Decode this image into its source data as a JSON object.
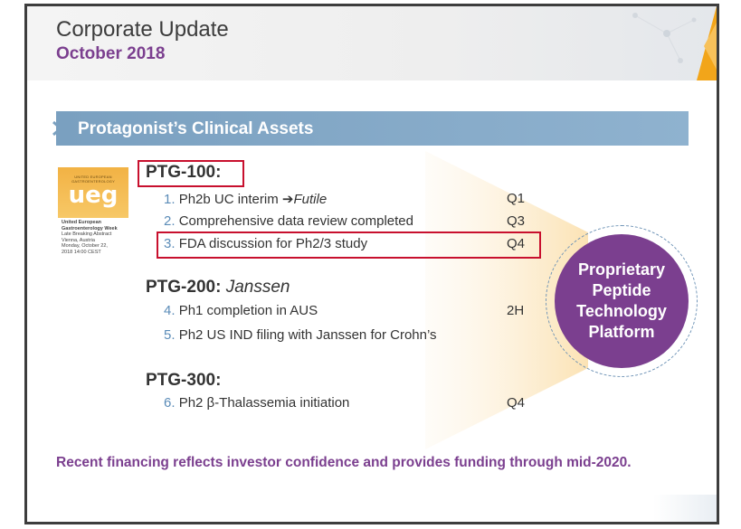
{
  "header": {
    "title": "Corporate Update",
    "subtitle": "October 2018"
  },
  "section": {
    "title": "Protagonist’s Clinical Assets"
  },
  "ueg_logo": {
    "small_text": "UNITED EUROPEAN GASTROENTEROLOGY",
    "wordmark": "ueg",
    "caption_bold": "United European Gastroenterology Week",
    "caption_lines": [
      "Late Breaking Abstract",
      "Vienna, Austria",
      "Monday, October 22,",
      "2018 14:00 CEST"
    ]
  },
  "assets": [
    {
      "name": "PTG-100:",
      "partner": "",
      "items": [
        {
          "num": "1.",
          "text": "Ph2b UC interim ",
          "arrow": "➔",
          "emphasis": "Futile",
          "timing": "Q1"
        },
        {
          "num": "2.",
          "text": "Comprehensive data review completed",
          "timing": "Q3"
        },
        {
          "num": "3.",
          "text": "FDA discussion for Ph2/3 study",
          "timing": "Q4"
        }
      ]
    },
    {
      "name": "PTG-200:",
      "partner": "Janssen",
      "items": [
        {
          "num": "4.",
          "text": "Ph1 completion in AUS",
          "timing": "2H"
        },
        {
          "num": "5.",
          "text": "Ph2 US IND filing with Janssen for Crohn’s",
          "timing": ""
        }
      ]
    },
    {
      "name": "PTG-300:",
      "partner": "",
      "items": [
        {
          "num": "6.",
          "text": "Ph2 β-Thalassemia initiation",
          "timing": "Q4"
        }
      ]
    }
  ],
  "platform_circle": {
    "lines": [
      "Proprietary",
      "Peptide",
      "Technology",
      "Platform"
    ]
  },
  "footer": {
    "statement": "Recent financing reflects investor confidence and provides funding through mid-2020."
  },
  "colors": {
    "accent_purple": "#7b3f8f",
    "section_blue": "#7aa0c0",
    "highlight_red": "#c8102e",
    "logo_orange": "#f2b244",
    "number_blue": "#5b8cb8"
  }
}
